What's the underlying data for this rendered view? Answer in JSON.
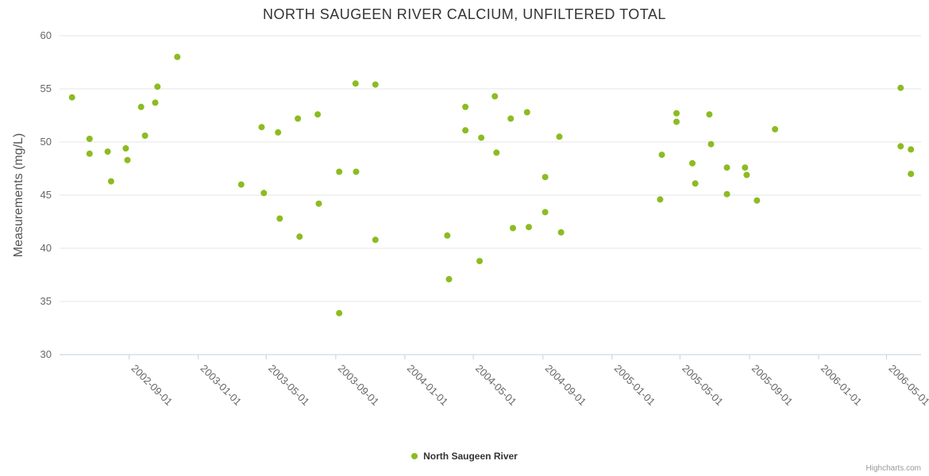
{
  "title": "NORTH SAUGEEN RIVER CALCIUM, UNFILTERED TOTAL",
  "credits": {
    "label": "Highcharts.com"
  },
  "colors": {
    "series_green": "#8bbc21",
    "gridline": "#e6e6e6",
    "axis_line": "#c0d0e0",
    "tick_label": "#666666",
    "title_text": "#333333"
  },
  "chart_data": {
    "type": "scatter",
    "title": "NORTH SAUGEEN RIVER CALCIUM, UNFILTERED TOTAL",
    "xlabel": "",
    "ylabel": "Measurements (mg/L)",
    "legend_position": "bottom-center",
    "grid": "horizontal",
    "ylim": [
      30,
      60
    ],
    "y_ticks": [
      30,
      35,
      40,
      45,
      50,
      55,
      60
    ],
    "xlim": [
      "2002-05-01",
      "2006-07-01"
    ],
    "x_ticks": [
      "2002-09-01",
      "2003-01-01",
      "2003-05-01",
      "2003-09-01",
      "2004-01-01",
      "2004-05-01",
      "2004-09-01",
      "2005-01-01",
      "2005-05-01",
      "2005-09-01",
      "2006-01-01",
      "2006-05-01"
    ],
    "series": [
      {
        "name": "North Saugeen River",
        "color": "#8bbc21",
        "points": [
          {
            "date": "2002-05-23",
            "value": 54.2
          },
          {
            "date": "2002-06-23",
            "value": 50.3
          },
          {
            "date": "2002-06-23",
            "value": 48.9
          },
          {
            "date": "2002-07-25",
            "value": 49.1
          },
          {
            "date": "2002-07-31",
            "value": 46.3
          },
          {
            "date": "2002-08-26",
            "value": 49.4
          },
          {
            "date": "2002-08-29",
            "value": 48.3
          },
          {
            "date": "2002-09-22",
            "value": 53.3
          },
          {
            "date": "2002-09-29",
            "value": 50.6
          },
          {
            "date": "2002-10-17",
            "value": 53.7
          },
          {
            "date": "2002-10-21",
            "value": 55.2
          },
          {
            "date": "2002-11-25",
            "value": 58.0
          },
          {
            "date": "2003-03-18",
            "value": 46.0
          },
          {
            "date": "2003-04-23",
            "value": 51.4
          },
          {
            "date": "2003-04-27",
            "value": 45.2
          },
          {
            "date": "2003-05-22",
            "value": 50.9
          },
          {
            "date": "2003-05-25",
            "value": 42.8
          },
          {
            "date": "2003-06-26",
            "value": 52.2
          },
          {
            "date": "2003-06-29",
            "value": 41.1
          },
          {
            "date": "2003-07-31",
            "value": 52.6
          },
          {
            "date": "2003-08-02",
            "value": 44.2
          },
          {
            "date": "2003-09-07",
            "value": 47.2
          },
          {
            "date": "2003-09-07",
            "value": 33.9
          },
          {
            "date": "2003-10-06",
            "value": 55.5
          },
          {
            "date": "2003-10-07",
            "value": 47.2
          },
          {
            "date": "2003-11-10",
            "value": 55.4
          },
          {
            "date": "2003-11-10",
            "value": 40.8
          },
          {
            "date": "2004-03-16",
            "value": 41.2
          },
          {
            "date": "2004-03-19",
            "value": 37.1
          },
          {
            "date": "2004-04-17",
            "value": 53.3
          },
          {
            "date": "2004-04-17",
            "value": 51.1
          },
          {
            "date": "2004-05-12",
            "value": 38.8
          },
          {
            "date": "2004-05-15",
            "value": 50.4
          },
          {
            "date": "2004-06-08",
            "value": 54.3
          },
          {
            "date": "2004-06-11",
            "value": 49.0
          },
          {
            "date": "2004-07-06",
            "value": 52.2
          },
          {
            "date": "2004-07-10",
            "value": 41.9
          },
          {
            "date": "2004-08-04",
            "value": 52.8
          },
          {
            "date": "2004-08-07",
            "value": 42.0
          },
          {
            "date": "2004-09-05",
            "value": 46.7
          },
          {
            "date": "2004-09-05",
            "value": 43.4
          },
          {
            "date": "2004-09-30",
            "value": 50.5
          },
          {
            "date": "2004-10-03",
            "value": 41.5
          },
          {
            "date": "2005-03-27",
            "value": 44.6
          },
          {
            "date": "2005-03-30",
            "value": 48.8
          },
          {
            "date": "2005-04-25",
            "value": 52.7
          },
          {
            "date": "2005-04-25",
            "value": 51.9
          },
          {
            "date": "2005-05-23",
            "value": 48.0
          },
          {
            "date": "2005-05-28",
            "value": 46.1
          },
          {
            "date": "2005-06-22",
            "value": 52.6
          },
          {
            "date": "2005-06-25",
            "value": 49.8
          },
          {
            "date": "2005-07-23",
            "value": 47.6
          },
          {
            "date": "2005-07-23",
            "value": 45.1
          },
          {
            "date": "2005-08-24",
            "value": 47.6
          },
          {
            "date": "2005-08-27",
            "value": 46.9
          },
          {
            "date": "2005-09-14",
            "value": 44.5
          },
          {
            "date": "2005-10-16",
            "value": 51.2
          },
          {
            "date": "2006-05-26",
            "value": 55.1
          },
          {
            "date": "2006-05-26",
            "value": 49.6
          },
          {
            "date": "2006-06-13",
            "value": 49.3
          },
          {
            "date": "2006-06-13",
            "value": 47.0
          }
        ]
      }
    ]
  }
}
